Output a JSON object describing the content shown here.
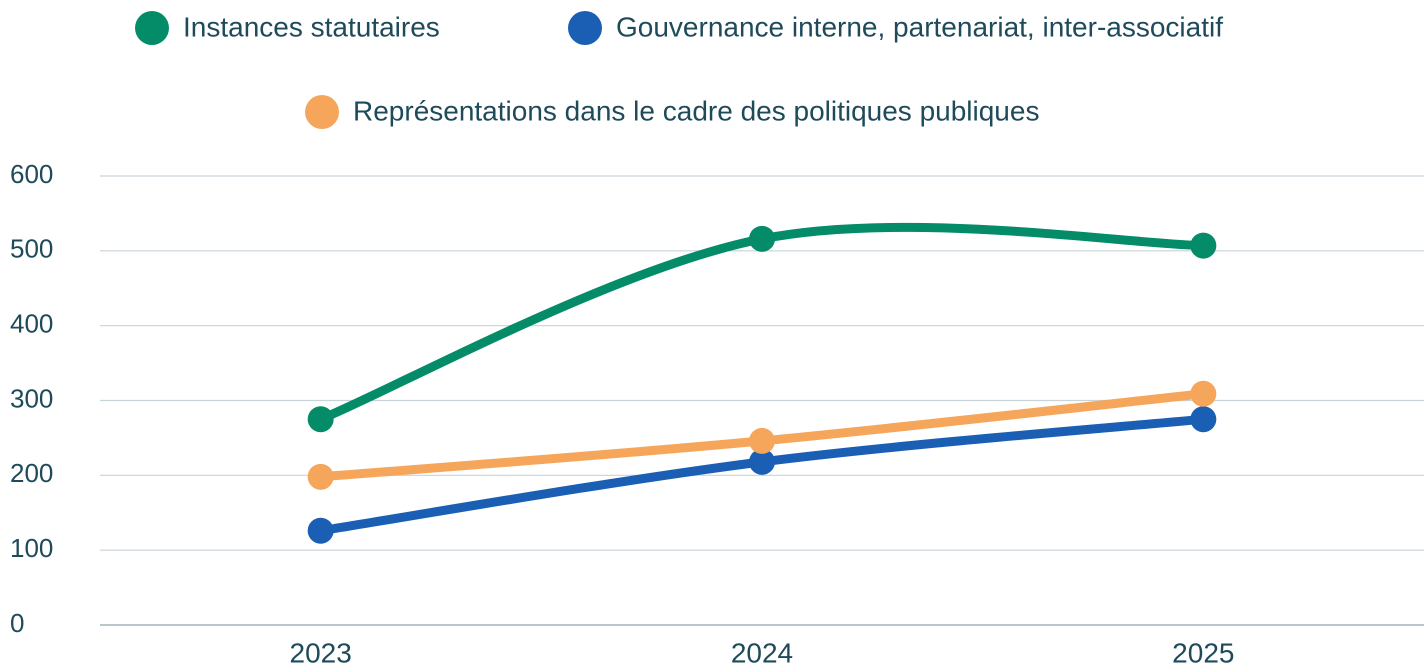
{
  "chart_data": {
    "type": "line",
    "categories": [
      "2023",
      "2024",
      "2025"
    ],
    "series": [
      {
        "name": "Instances statutaires",
        "color": "#038c67",
        "values": [
          275,
          516,
          507
        ]
      },
      {
        "name": "Gouvernance interne, partenariat, inter-associatif",
        "color": "#1a5fb4",
        "values": [
          126,
          218,
          275
        ]
      },
      {
        "name": "Représentations dans le cadre des politiques publiques",
        "color": "#f5a65b",
        "values": [
          198,
          246,
          309
        ]
      }
    ],
    "ylim": [
      0,
      600
    ],
    "yticks": [
      0,
      100,
      200,
      300,
      400,
      500,
      600
    ],
    "grid": true,
    "smooth": true,
    "legend": "top"
  }
}
